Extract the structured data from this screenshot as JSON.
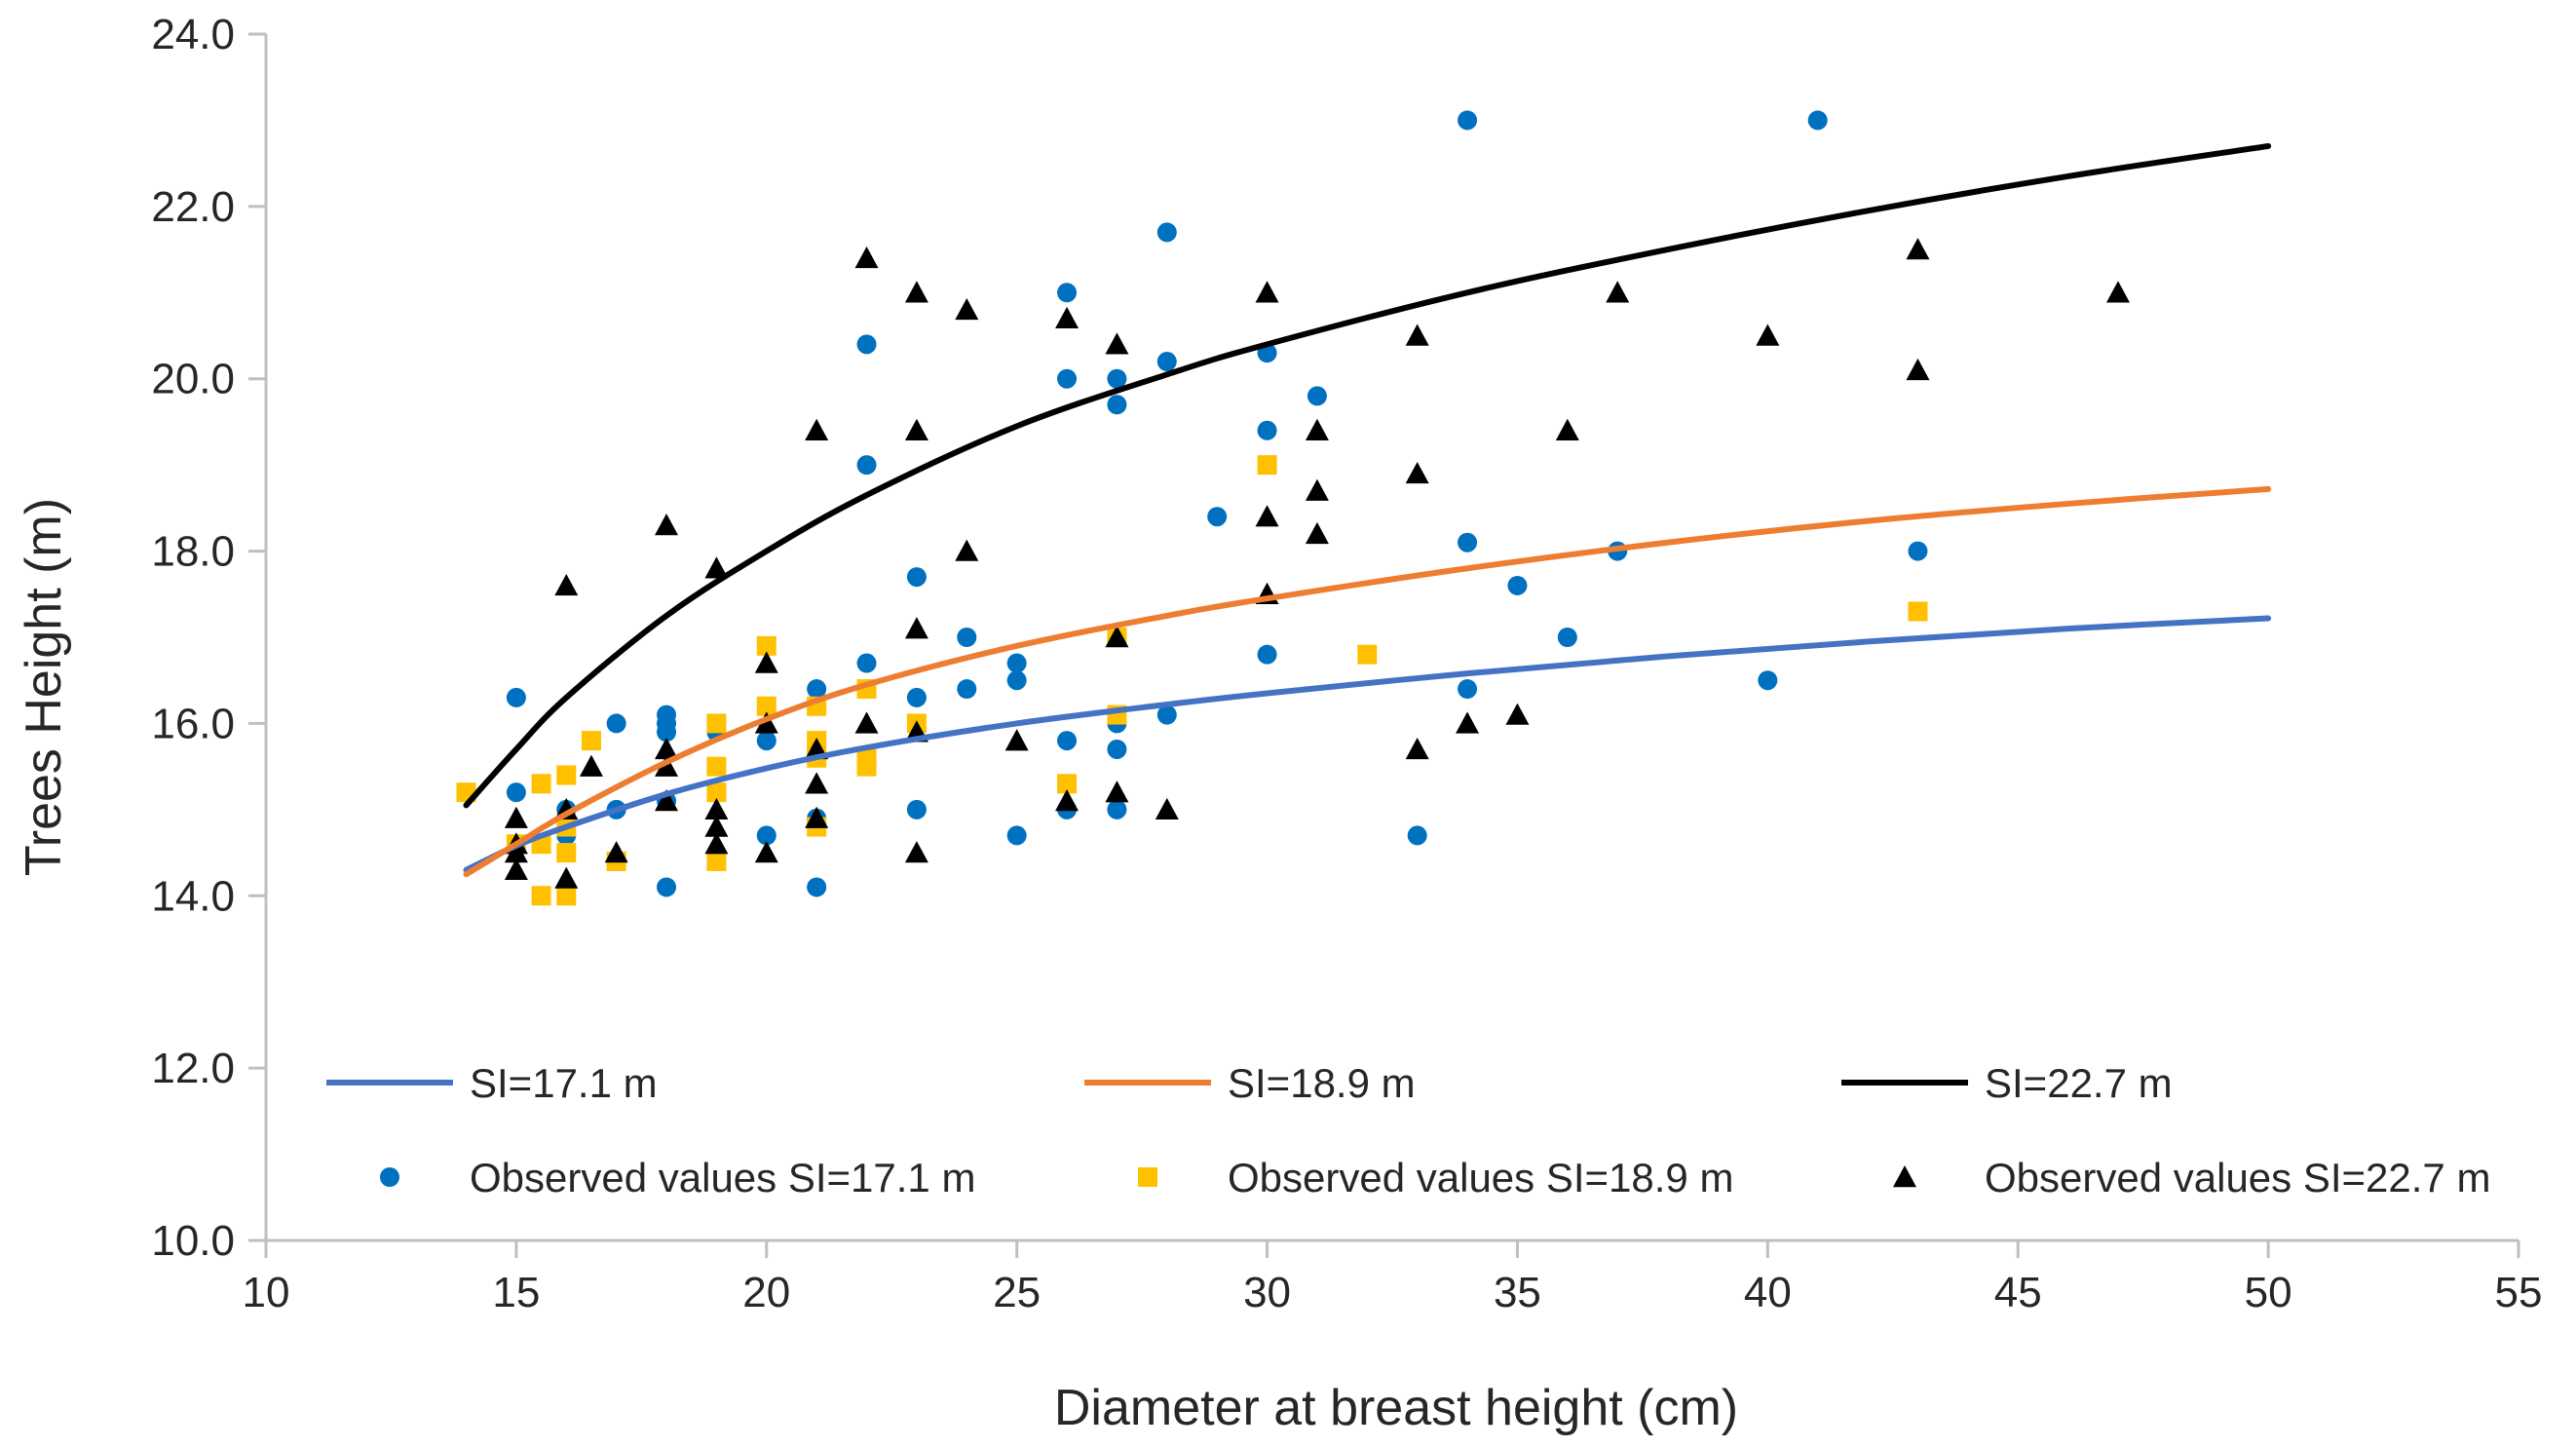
{
  "chart_data": {
    "type": "scatter",
    "title": "",
    "xlabel": "Diameter at breast height (cm)",
    "ylabel": "Trees Height (m)",
    "xlim": [
      10,
      55
    ],
    "ylim": [
      10,
      24
    ],
    "xticks": [
      10,
      15,
      20,
      25,
      30,
      35,
      40,
      45,
      50,
      55
    ],
    "yticks": [
      10,
      12,
      14,
      16,
      18,
      20,
      22,
      24
    ],
    "xtick_labels": [
      "10",
      "15",
      "20",
      "25",
      "30",
      "35",
      "40",
      "45",
      "50",
      "55"
    ],
    "ytick_labels": [
      "10.0",
      "12.0",
      "14.0",
      "16.0",
      "18.0",
      "20.0",
      "22.0",
      "24.0"
    ],
    "grid": false,
    "legend_position": "lower",
    "curves": [
      {
        "name": "SI=17.1 m",
        "color": "#4472C4",
        "x": [
          14,
          15,
          16,
          18,
          20,
          22,
          25,
          28,
          30,
          34,
          38,
          42,
          46,
          50
        ],
        "y": [
          14.3,
          14.58,
          14.8,
          15.18,
          15.48,
          15.72,
          16.0,
          16.22,
          16.35,
          16.58,
          16.78,
          16.95,
          17.1,
          17.22
        ]
      },
      {
        "name": "SI=18.9 m",
        "color": "#ED7D31",
        "x": [
          14,
          15,
          16,
          18,
          20,
          22,
          25,
          28,
          30,
          34,
          38,
          42,
          46,
          50
        ],
        "y": [
          14.25,
          14.6,
          14.95,
          15.55,
          16.05,
          16.45,
          16.9,
          17.25,
          17.45,
          17.8,
          18.1,
          18.35,
          18.55,
          18.72
        ]
      },
      {
        "name": "SI=22.7 m",
        "color": "#000000",
        "x": [
          14,
          15,
          16,
          18,
          20,
          22,
          25,
          28,
          30,
          34,
          38,
          42,
          46,
          50
        ],
        "y": [
          15.05,
          15.7,
          16.3,
          17.25,
          18.0,
          18.65,
          19.45,
          20.05,
          20.4,
          21.0,
          21.5,
          21.95,
          22.35,
          22.7
        ]
      }
    ],
    "series": [
      {
        "name": "Observed values SI=17.1 m",
        "marker": "circle",
        "color": "#0070C0",
        "points": [
          [
            15,
            16.3
          ],
          [
            15,
            15.2
          ],
          [
            16,
            14.7
          ],
          [
            16,
            15.0
          ],
          [
            17,
            16.0
          ],
          [
            17,
            15.0
          ],
          [
            18,
            16.1
          ],
          [
            18,
            16.0
          ],
          [
            18,
            15.9
          ],
          [
            18,
            15.1
          ],
          [
            18,
            14.1
          ],
          [
            19,
            15.9
          ],
          [
            20,
            15.8
          ],
          [
            20,
            14.7
          ],
          [
            21,
            16.4
          ],
          [
            21,
            14.9
          ],
          [
            21,
            14.1
          ],
          [
            22,
            20.4
          ],
          [
            22,
            19.0
          ],
          [
            22,
            16.7
          ],
          [
            22,
            16.4
          ],
          [
            22,
            15.5
          ],
          [
            23,
            17.7
          ],
          [
            23,
            16.3
          ],
          [
            23,
            15.0
          ],
          [
            24,
            17.0
          ],
          [
            24,
            16.4
          ],
          [
            25,
            16.7
          ],
          [
            25,
            16.5
          ],
          [
            25,
            14.7
          ],
          [
            26,
            21.0
          ],
          [
            26,
            20.0
          ],
          [
            26,
            15.8
          ],
          [
            26,
            15.0
          ],
          [
            27,
            20.0
          ],
          [
            27,
            19.7
          ],
          [
            27,
            16.0
          ],
          [
            27,
            15.7
          ],
          [
            27,
            15.0
          ],
          [
            28,
            21.7
          ],
          [
            28,
            20.2
          ],
          [
            28,
            16.1
          ],
          [
            29,
            18.4
          ],
          [
            30,
            20.3
          ],
          [
            30,
            19.4
          ],
          [
            30,
            16.8
          ],
          [
            31,
            19.8
          ],
          [
            33,
            14.7
          ],
          [
            34,
            23.0
          ],
          [
            34,
            18.1
          ],
          [
            34,
            16.4
          ],
          [
            35,
            17.6
          ],
          [
            36,
            17.0
          ],
          [
            37,
            18.0
          ],
          [
            40,
            16.5
          ],
          [
            41,
            23.0
          ],
          [
            43,
            18.0
          ]
        ]
      },
      {
        "name": "Observed values SI=18.9 m",
        "marker": "square",
        "color": "#FFC000",
        "points": [
          [
            14,
            15.2
          ],
          [
            15,
            14.6
          ],
          [
            15.5,
            15.3
          ],
          [
            15.5,
            14.6
          ],
          [
            15.5,
            14.0
          ],
          [
            16,
            15.4
          ],
          [
            16,
            14.8
          ],
          [
            16,
            14.5
          ],
          [
            16,
            14.0
          ],
          [
            16.5,
            15.8
          ],
          [
            17,
            14.4
          ],
          [
            19,
            16.0
          ],
          [
            19,
            15.5
          ],
          [
            19,
            15.2
          ],
          [
            19,
            14.4
          ],
          [
            20,
            16.9
          ],
          [
            20,
            16.2
          ],
          [
            21,
            16.2
          ],
          [
            21,
            15.8
          ],
          [
            21,
            15.6
          ],
          [
            21,
            14.8
          ],
          [
            22,
            16.4
          ],
          [
            22,
            15.6
          ],
          [
            22,
            15.5
          ],
          [
            23,
            16.0
          ],
          [
            26,
            15.3
          ],
          [
            27,
            17.0
          ],
          [
            27,
            16.1
          ],
          [
            30,
            19.0
          ],
          [
            32,
            16.8
          ],
          [
            43,
            17.3
          ]
        ]
      },
      {
        "name": "Observed values SI=22.7 m",
        "marker": "triangle",
        "color": "#000000",
        "points": [
          [
            15,
            14.9
          ],
          [
            15,
            14.6
          ],
          [
            15,
            14.5
          ],
          [
            15,
            14.3
          ],
          [
            16,
            17.6
          ],
          [
            16,
            15.0
          ],
          [
            16,
            14.2
          ],
          [
            16.5,
            15.5
          ],
          [
            17,
            14.5
          ],
          [
            18,
            18.3
          ],
          [
            18,
            15.7
          ],
          [
            18,
            15.5
          ],
          [
            18,
            15.1
          ],
          [
            19,
            17.8
          ],
          [
            19,
            15.0
          ],
          [
            19,
            14.8
          ],
          [
            19,
            14.6
          ],
          [
            20,
            16.7
          ],
          [
            20,
            16.0
          ],
          [
            20,
            14.5
          ],
          [
            21,
            19.4
          ],
          [
            21,
            15.7
          ],
          [
            21,
            15.3
          ],
          [
            21,
            14.9
          ],
          [
            22,
            21.4
          ],
          [
            22,
            16.0
          ],
          [
            23,
            21.0
          ],
          [
            23,
            19.4
          ],
          [
            23,
            17.1
          ],
          [
            23,
            15.9
          ],
          [
            23,
            14.5
          ],
          [
            24,
            20.8
          ],
          [
            24,
            18.0
          ],
          [
            25,
            15.8
          ],
          [
            26,
            20.7
          ],
          [
            26,
            15.1
          ],
          [
            27,
            20.4
          ],
          [
            27,
            17.0
          ],
          [
            27,
            15.2
          ],
          [
            28,
            15.0
          ],
          [
            30,
            21.0
          ],
          [
            30,
            18.4
          ],
          [
            30,
            17.5
          ],
          [
            31,
            19.4
          ],
          [
            31,
            18.7
          ],
          [
            31,
            18.2
          ],
          [
            33,
            20.5
          ],
          [
            33,
            18.9
          ],
          [
            33,
            15.7
          ],
          [
            34,
            16.0
          ],
          [
            35,
            16.1
          ],
          [
            36,
            19.4
          ],
          [
            37,
            21.0
          ],
          [
            40,
            20.5
          ],
          [
            43,
            21.5
          ],
          [
            43,
            20.1
          ],
          [
            47,
            21.0
          ]
        ]
      }
    ]
  }
}
